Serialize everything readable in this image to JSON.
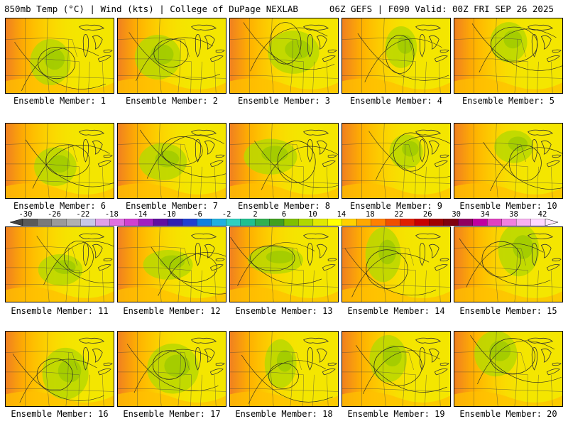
{
  "header": {
    "left": "850mb Temp (°C) | Wind (kts) | College of DuPage NEXLAB",
    "right": "06Z GEFS | F090 Valid: 00Z FRI SEP 26 2025"
  },
  "panels": [
    {
      "label": "Ensemble Member: 1"
    },
    {
      "label": "Ensemble Member: 2"
    },
    {
      "label": "Ensemble Member: 3"
    },
    {
      "label": "Ensemble Member: 4"
    },
    {
      "label": "Ensemble Member: 5"
    },
    {
      "label": "Ensemble Member: 6"
    },
    {
      "label": "Ensemble Member: 7"
    },
    {
      "label": "Ensemble Member: 8"
    },
    {
      "label": "Ensemble Member: 9"
    },
    {
      "label": "Ensemble Member: 10"
    },
    {
      "label": "Ensemble Member: 11"
    },
    {
      "label": "Ensemble Member: 12"
    },
    {
      "label": "Ensemble Member: 13"
    },
    {
      "label": "Ensemble Member: 14"
    },
    {
      "label": "Ensemble Member: 15"
    },
    {
      "label": "Ensemble Member: 16"
    },
    {
      "label": "Ensemble Member: 17"
    },
    {
      "label": "Ensemble Member: 18"
    },
    {
      "label": "Ensemble Member: 19"
    },
    {
      "label": "Ensemble Member: 20"
    }
  ],
  "colorbar": {
    "labels": [
      "-30",
      "-26",
      "-22",
      "-18",
      "-14",
      "-10",
      "-6",
      "-2",
      "2",
      "6",
      "10",
      "14",
      "18",
      "22",
      "26",
      "30",
      "34",
      "38",
      "42"
    ],
    "colors": [
      "#5a5a5a",
      "#7a7a7a",
      "#9a9a9a",
      "#b0b0b0",
      "#c8c8e8",
      "#e0a0e8",
      "#e070e0",
      "#d040d0",
      "#a020c0",
      "#6010a0",
      "#3020b0",
      "#2040d0",
      "#1080e0",
      "#20b0e0",
      "#30d0c0",
      "#20c090",
      "#30b050",
      "#40a020",
      "#80c000",
      "#b0d800",
      "#e0e800",
      "#ffff00",
      "#ffd000",
      "#ffa800",
      "#ff8000",
      "#f05000",
      "#e02000",
      "#c80000",
      "#a00000",
      "#800010",
      "#900060",
      "#c000a0",
      "#e040c0",
      "#f080e0",
      "#f8b0f0",
      "#ffd8ff"
    ]
  }
}
